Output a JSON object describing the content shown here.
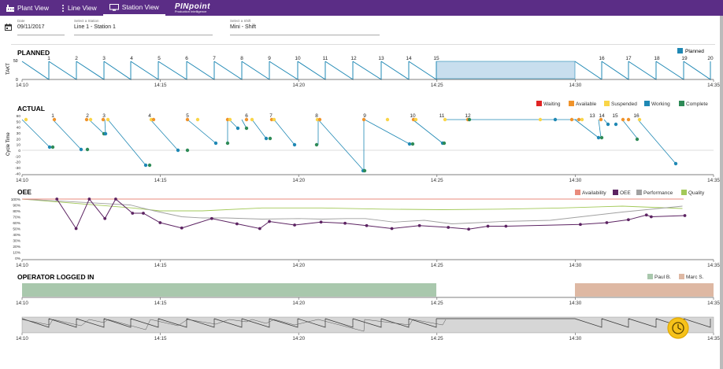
{
  "nav": {
    "items": [
      {
        "label": "Plant View",
        "icon": "factory-icon"
      },
      {
        "label": "Line View",
        "icon": "more-vertical-icon"
      },
      {
        "label": "Station  View",
        "icon": "monitor-icon",
        "active": true
      }
    ],
    "logo": "PINpoint",
    "logo_sub": "Production Intelligence"
  },
  "filters": {
    "date_label": "Date",
    "date_value": "09/11/2017",
    "station_label": "Select a Station",
    "station_value": "Line 1 - Station 1",
    "shift_label": "Select a Shift",
    "shift_value": "Mini - Shift"
  },
  "time_ticks": [
    "14:10",
    "14:15",
    "14:20",
    "14:25",
    "14:30",
    "14:35"
  ],
  "colors": {
    "accent": "#5b2d86",
    "waiting": "#e02424",
    "available": "#f0932b",
    "suspended": "#f9d548",
    "working": "#1f88b4",
    "complete": "#2e8b57",
    "availability": "#e98b7c",
    "oee": "#5c2362",
    "performance": "#a0a0a0",
    "quality": "#a3c959",
    "paul": "#a9c8ad",
    "marc": "#deb8a3"
  },
  "planned": {
    "title": "PLANNED",
    "ylabel": "TAKT",
    "yticks": [
      "50",
      "0"
    ],
    "legend": "Planned",
    "cycles": [
      "1",
      "2",
      "3",
      "4",
      "5",
      "6",
      "7",
      "8",
      "9",
      "10",
      "11",
      "12",
      "13",
      "14",
      "15",
      "16",
      "17",
      "18",
      "19",
      "20"
    ]
  },
  "actual": {
    "title": "ACTUAL",
    "ylabel": "Cycle Time",
    "yticks": [
      "60",
      "50",
      "40",
      "30",
      "20",
      "10",
      "0",
      "-10",
      "-20",
      "-30",
      "-40"
    ],
    "legend": [
      "Waiting",
      "Available",
      "Suspended",
      "Working",
      "Complete"
    ],
    "cycles": [
      "1",
      "2",
      "3",
      "4",
      "5",
      "6",
      "7",
      "8",
      "9",
      "10",
      "11",
      "12",
      "13",
      "14",
      "15",
      "16"
    ]
  },
  "oee": {
    "title": "OEE",
    "yticks": [
      "100%",
      "90%",
      "80%",
      "70%",
      "60%",
      "50%",
      "40%",
      "30%",
      "20%",
      "10%",
      "0%"
    ],
    "legend": [
      "Availability",
      "OEE",
      "Performance",
      "Quality"
    ]
  },
  "operator": {
    "title": "OPERATOR LOGGED IN",
    "legend": [
      "Paul B.",
      "Marc S."
    ]
  },
  "chart_data": [
    {
      "type": "line",
      "title": "PLANNED",
      "ylabel": "TAKT",
      "ylim": [
        0,
        60
      ],
      "description_units": "x = minutes after 14:10",
      "x_range": [
        "14:10",
        "14:35"
      ],
      "cycle_starts_min": [
        1.5,
        3.5,
        5.6,
        7.5,
        9.5,
        11.5,
        13.5,
        15.5,
        17.6,
        20.0,
        22.0,
        24.2,
        26.2,
        28.2,
        30.2,
        32.7,
        35.1,
        37.3,
        39.3,
        41.3
      ],
      "takt_value": 50
    },
    {
      "type": "scatter",
      "title": "ACTUAL",
      "ylabel": "Cycle Time",
      "ylim": [
        -40,
        60
      ],
      "series": [
        {
          "name": "Available",
          "x": [
            0.2,
            1.6,
            3.9,
            5.2,
            9.3,
            12.5,
            15.9,
            17.9,
            21.5,
            25.4,
            27.6,
            30.9,
            35.4,
            36.5,
            40.3,
            41.2,
            44.8
          ],
          "y": [
            55,
            55,
            55,
            55,
            55,
            55,
            55,
            55,
            55,
            55,
            55,
            55,
            55,
            55,
            55,
            55,
            55
          ]
        },
        {
          "name": "Suspended",
          "x": [
            0.5,
            3.7,
            4.5,
            5.8,
            9.6,
            10.2,
            13.3,
            14.6,
            16.2,
            18.2,
            22.0,
            26.3,
            28.5,
            31.5,
            37.5,
            41.8,
            42.5,
            44.0
          ],
          "y": [
            55,
            55,
            55,
            55,
            55,
            55,
            55,
            55,
            55,
            55,
            55,
            55,
            55,
            55,
            55,
            55,
            55,
            55
          ]
        },
        {
          "name": "Working",
          "x": [
            1.0,
            2.2,
            4.1,
            5.7,
            9.1,
            11.4,
            12.3,
            14.5,
            16.4,
            18.6,
            21.8,
            25.0,
            28.6,
            31.3,
            38.4,
            40.6,
            43.3,
            45.5,
            47.5
          ],
          "y": [
            5,
            2,
            28,
            -26,
            -35,
            2,
            2,
            40,
            20,
            8,
            -36,
            10,
            12,
            52,
            53,
            21,
            47,
            20,
            -22
          ]
        },
        {
          "name": "Complete",
          "x": [
            1.2,
            2.5,
            4.3,
            5.9,
            9.4,
            11.6,
            12.7,
            14.8,
            16.7,
            21.9,
            25.3,
            28.8,
            41.0,
            44.5
          ],
          "y": [
            5,
            2,
            28,
            -26,
            2,
            2,
            12,
            40,
            20,
            -36,
            10,
            12,
            21,
            20
          ]
        }
      ]
    },
    {
      "type": "line",
      "title": "OEE",
      "ylim": [
        0,
        100
      ],
      "series": [
        {
          "name": "Availability",
          "x": [
            0,
            50
          ],
          "y": [
            100,
            100
          ]
        },
        {
          "name": "OEE",
          "x": [
            2.9,
            4.5,
            5.6,
            6.9,
            7.8,
            9.2,
            10.1,
            11.5,
            13.3,
            15.8,
            17.9,
            19.8,
            20.6,
            22.7,
            24.9,
            26.9,
            28.7,
            30.8,
            33.1,
            35.5,
            37.2,
            38.8,
            40.3,
            46.5,
            48.7,
            50.5,
            52.0,
            52.4,
            55.2
          ],
          "y": [
            100,
            50,
            100,
            67,
            100,
            76,
            76,
            60,
            51,
            67,
            58,
            50,
            62,
            56,
            61,
            59,
            55,
            50,
            55,
            52,
            49,
            54,
            54,
            57,
            60,
            65,
            73,
            70,
            72
          ]
        },
        {
          "name": "Performance",
          "x": [
            0,
            9,
            11,
            13.3,
            15,
            17,
            20,
            23,
            25,
            27,
            28.6,
            31,
            33.5,
            35.8,
            38,
            40,
            44,
            50,
            55
          ],
          "y": [
            100,
            90,
            80,
            70,
            68,
            68,
            66,
            67,
            66,
            67,
            67,
            61,
            64,
            58,
            60,
            62,
            64,
            78,
            88
          ]
        },
        {
          "name": "Quality",
          "x": [
            0,
            9.2,
            11.5,
            15,
            20,
            25,
            30,
            35,
            40,
            45,
            50,
            55
          ],
          "y": [
            100,
            85,
            80,
            80,
            85,
            85,
            83,
            82,
            83,
            85,
            88,
            84
          ]
        }
      ]
    },
    {
      "type": "bar",
      "title": "OPERATOR LOGGED IN",
      "series": [
        {
          "name": "Paul B.",
          "start": "14:10",
          "end": "14:25"
        },
        {
          "name": "Marc S.",
          "start": "14:30",
          "end": "14:35"
        }
      ]
    }
  ]
}
